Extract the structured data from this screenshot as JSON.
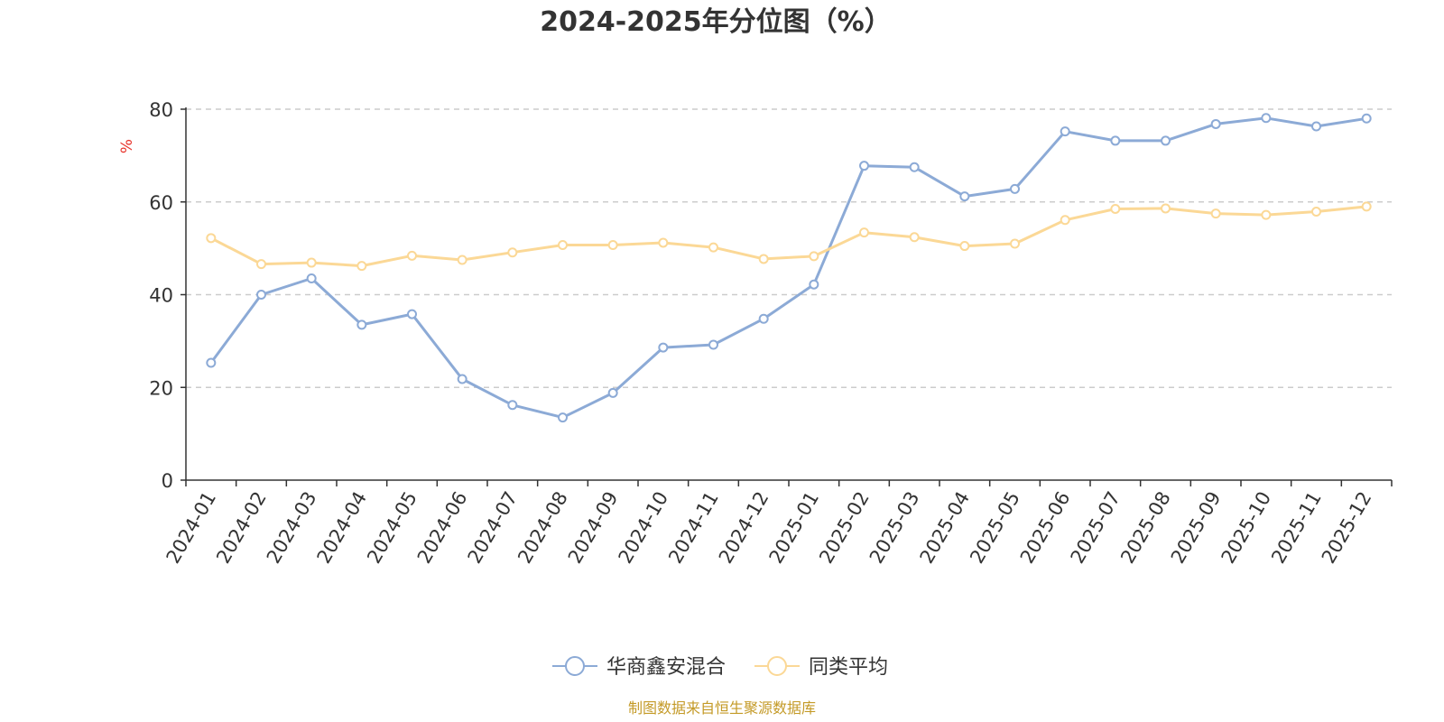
{
  "chart_data": {
    "type": "line",
    "title": "2024-2025年分位图（%）",
    "ylabel": "%",
    "xlabel": "",
    "ylim": [
      0,
      80
    ],
    "yticks": [
      0,
      20,
      40,
      60,
      80
    ],
    "grid": true,
    "legend_position": "bottom",
    "categories": [
      "2024-01",
      "2024-02",
      "2024-03",
      "2024-04",
      "2024-05",
      "2024-06",
      "2024-07",
      "2024-08",
      "2024-09",
      "2024-10",
      "2024-11",
      "2024-12",
      "2025-01",
      "2025-02",
      "2025-03",
      "2025-04",
      "2025-05",
      "2025-06",
      "2025-07",
      "2025-08",
      "2025-09",
      "2025-10",
      "2025-11",
      "2025-12"
    ],
    "series": [
      {
        "name": "华商鑫安混合",
        "color": "#8caad6",
        "values": [
          25.3,
          40.0,
          43.5,
          33.5,
          35.8,
          21.8,
          16.2,
          13.5,
          18.8,
          28.6,
          29.2,
          34.8,
          42.2,
          67.8,
          67.5,
          61.2,
          62.8,
          75.2,
          73.2,
          73.2,
          76.8,
          78.1,
          76.3,
          78.0
        ]
      },
      {
        "name": "同类平均",
        "color": "#fbd896",
        "values": [
          52.2,
          46.6,
          46.9,
          46.2,
          48.4,
          47.5,
          49.1,
          50.7,
          50.7,
          51.2,
          50.2,
          47.7,
          48.3,
          53.4,
          52.4,
          50.5,
          51.0,
          56.1,
          58.5,
          58.6,
          57.5,
          57.2,
          57.9,
          59.0
        ]
      }
    ],
    "source": "制图数据来自恒生聚源数据库",
    "source_color": "#c49a27",
    "ylabel_color": "#e8342c",
    "axis_color": "#333333",
    "grid_color": "#cccccc"
  }
}
